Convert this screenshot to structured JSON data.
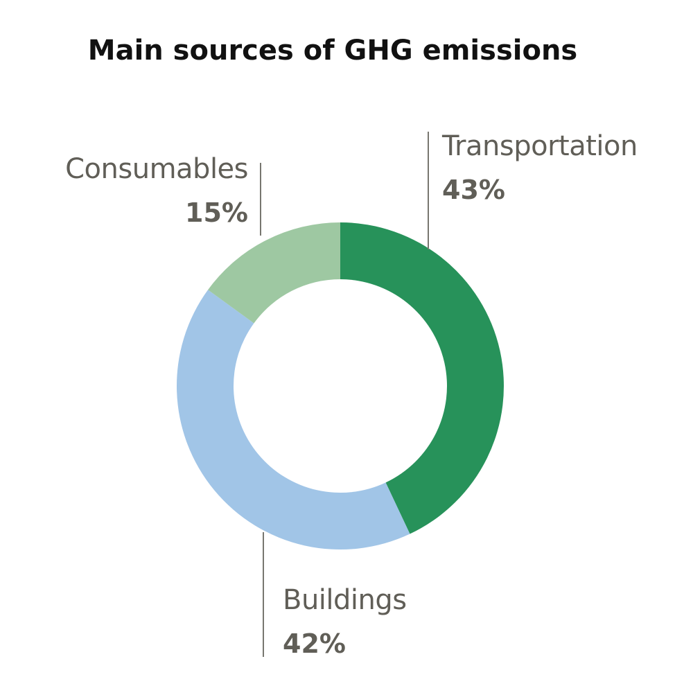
{
  "chart_data": {
    "type": "pie",
    "title": "Main sources of GHG emissions",
    "slices": [
      {
        "label": "Transportation",
        "percent_label": "43%",
        "value": 43,
        "color": "#27925a"
      },
      {
        "label": "Buildings",
        "percent_label": "42%",
        "value": 42,
        "color": "#a1c5e7"
      },
      {
        "label": "Consumables",
        "percent_label": "15%",
        "value": 15,
        "color": "#9ec8a2"
      }
    ]
  }
}
